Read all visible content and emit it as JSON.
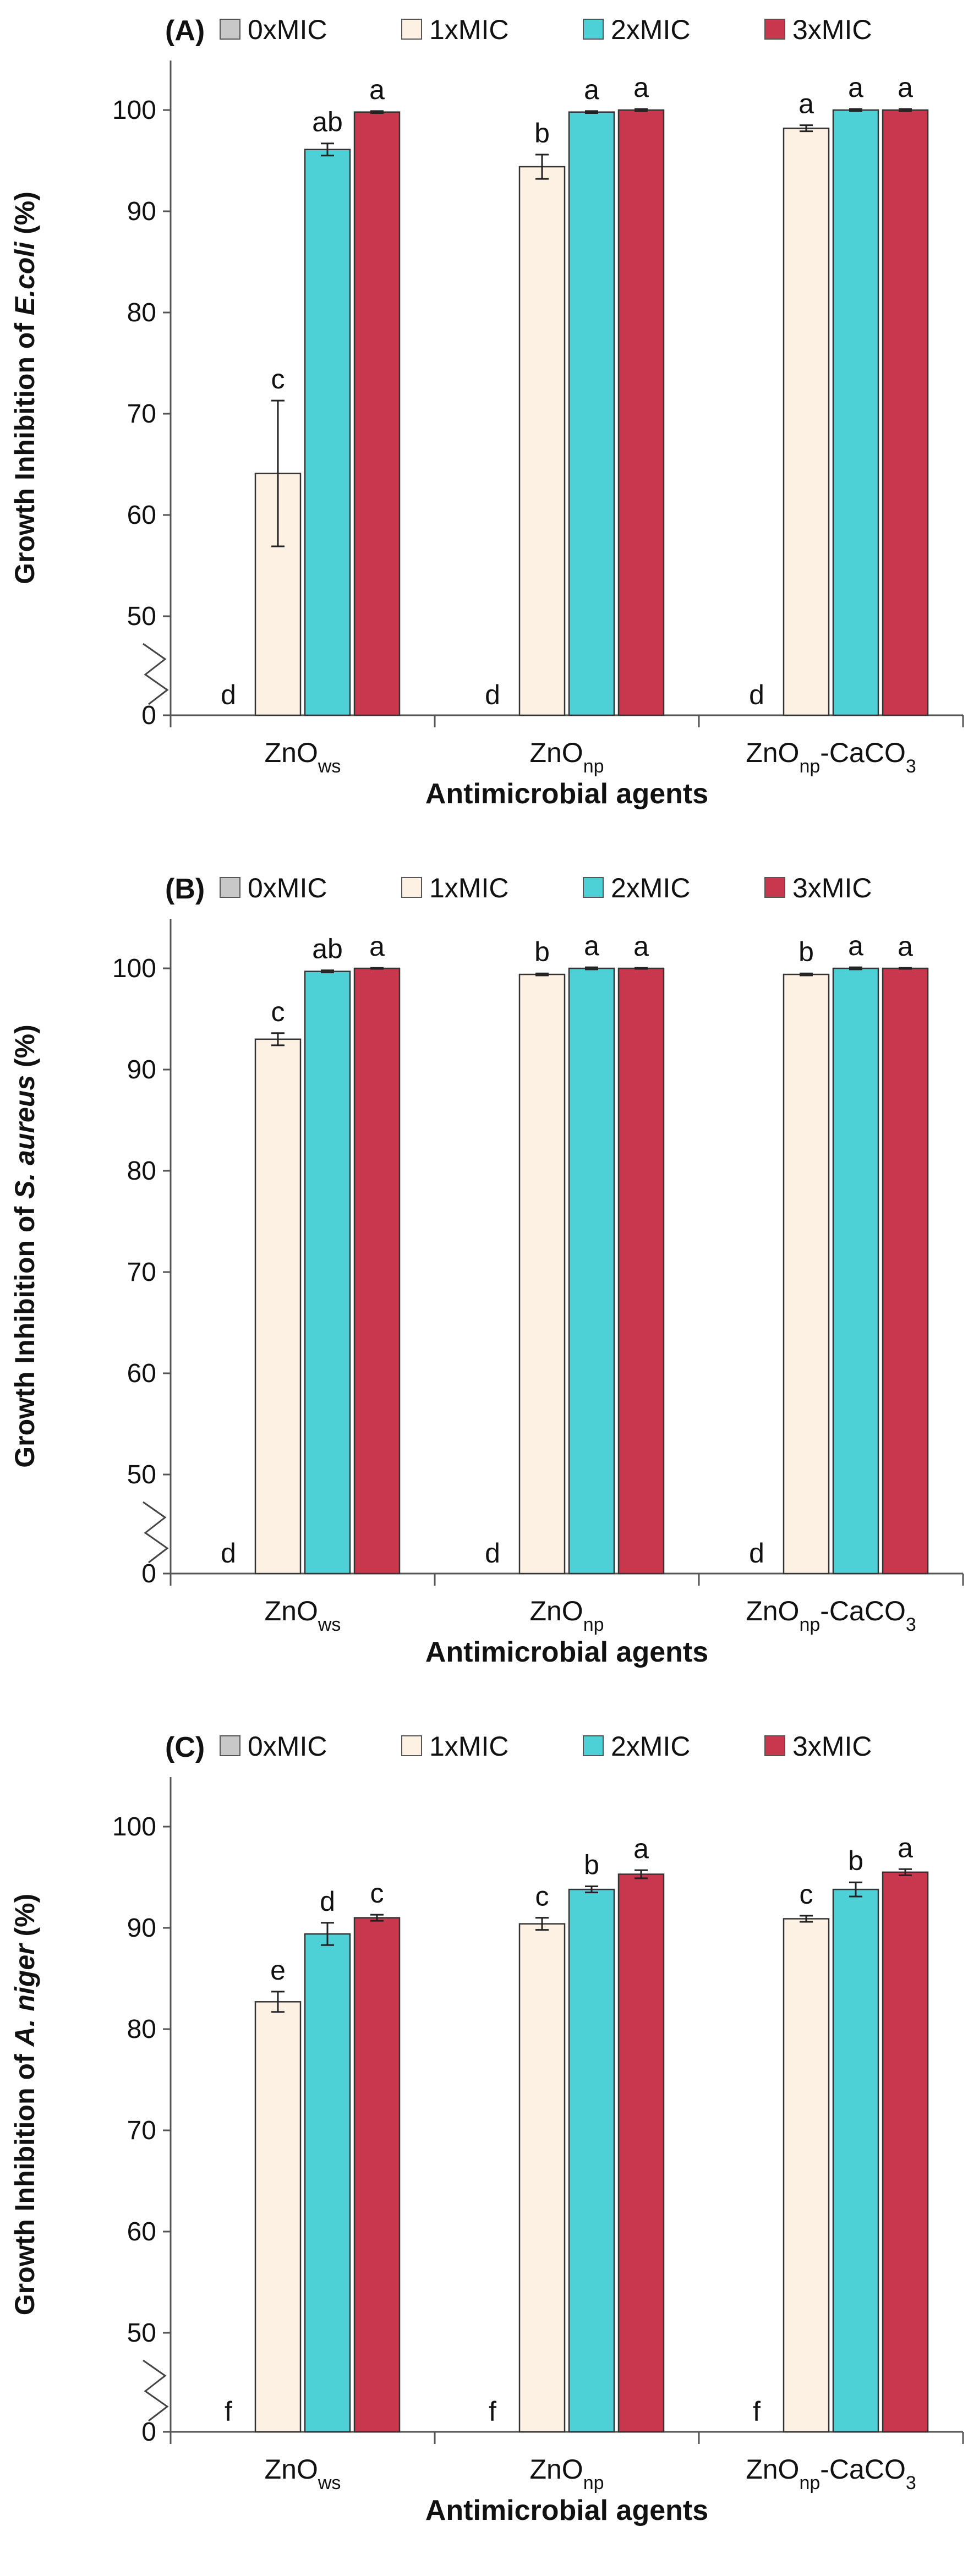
{
  "chart_data": [
    {
      "type": "bar",
      "panel": "(A)",
      "title": "",
      "ylabel_prefix": "Growth Inhibition of ",
      "organism": "E.coli",
      "ylabel_suffix": " (%)",
      "xlabel": "Antimicrobial agents",
      "categories": [
        {
          "base": "ZnO",
          "sub": "ws",
          "tail": "",
          "tail_sub": ""
        },
        {
          "base": "ZnO",
          "sub": "np",
          "tail": "",
          "tail_sub": ""
        },
        {
          "base": "ZnO",
          "sub": "np",
          "tail": "-CaCO",
          "tail_sub": "3"
        }
      ],
      "series": [
        {
          "name": "0xMIC",
          "color": "#c8c8c8",
          "values": [
            0,
            0,
            0
          ],
          "errors": [
            0,
            0,
            0
          ],
          "labels": [
            "d",
            "d",
            "d"
          ]
        },
        {
          "name": "1xMIC",
          "color": "#fdf1e4",
          "values": [
            64.1,
            94.4,
            98.2
          ],
          "errors": [
            7.2,
            1.2,
            0.3
          ],
          "labels": [
            "c",
            "b",
            "a"
          ]
        },
        {
          "name": "2xMIC",
          "color": "#4dd0d6",
          "values": [
            96.1,
            99.8,
            100
          ],
          "errors": [
            0.6,
            0.1,
            0.1
          ],
          "labels": [
            "ab",
            "a",
            "a"
          ]
        },
        {
          "name": "3xMIC",
          "color": "#c8374d",
          "values": [
            99.8,
            100,
            100
          ],
          "errors": [
            0.1,
            0.1,
            0.1
          ],
          "labels": [
            "a",
            "a",
            "a"
          ]
        }
      ],
      "ylim": [
        0,
        100
      ],
      "axis_break": [
        0,
        40
      ],
      "yticks": [
        0,
        50,
        60,
        70,
        80,
        90,
        100
      ],
      "legend_position": "top"
    },
    {
      "type": "bar",
      "panel": "(B)",
      "title": "",
      "ylabel_prefix": "Growth Inhibition of ",
      "organism": "S. aureus",
      "ylabel_suffix": " (%)",
      "xlabel": "Antimicrobial agents",
      "categories": [
        {
          "base": "ZnO",
          "sub": "ws",
          "tail": "",
          "tail_sub": ""
        },
        {
          "base": "ZnO",
          "sub": "np",
          "tail": "",
          "tail_sub": ""
        },
        {
          "base": "ZnO",
          "sub": "np",
          "tail": "-CaCO",
          "tail_sub": "3"
        }
      ],
      "series": [
        {
          "name": "0xMIC",
          "color": "#c8c8c8",
          "values": [
            0,
            0,
            0
          ],
          "errors": [
            0,
            0,
            0
          ],
          "labels": [
            "d",
            "d",
            "d"
          ]
        },
        {
          "name": "1xMIC",
          "color": "#fdf1e4",
          "values": [
            93.0,
            99.4,
            99.4
          ],
          "errors": [
            0.6,
            0.1,
            0.1
          ],
          "labels": [
            "c",
            "b",
            "b"
          ]
        },
        {
          "name": "2xMIC",
          "color": "#4dd0d6",
          "values": [
            99.7,
            100,
            100
          ],
          "errors": [
            0.1,
            0.1,
            0.1
          ],
          "labels": [
            "ab",
            "a",
            "a"
          ]
        },
        {
          "name": "3xMIC",
          "color": "#c8374d",
          "values": [
            100,
            100,
            100
          ],
          "errors": [
            0.05,
            0.05,
            0.05
          ],
          "labels": [
            "a",
            "a",
            "a"
          ]
        }
      ],
      "ylim": [
        0,
        100
      ],
      "axis_break": [
        0,
        40
      ],
      "yticks": [
        0,
        50,
        60,
        70,
        80,
        90,
        100
      ],
      "legend_position": "top"
    },
    {
      "type": "bar",
      "panel": "(C)",
      "title": "",
      "ylabel_prefix": "Growth Inhibition of ",
      "organism": "A. niger",
      "ylabel_suffix": " (%)",
      "xlabel": "Antimicrobial agents",
      "categories": [
        {
          "base": "ZnO",
          "sub": "ws",
          "tail": "",
          "tail_sub": ""
        },
        {
          "base": "ZnO",
          "sub": "np",
          "tail": "",
          "tail_sub": ""
        },
        {
          "base": "ZnO",
          "sub": "np",
          "tail": "-CaCO",
          "tail_sub": "3"
        }
      ],
      "series": [
        {
          "name": "0xMIC",
          "color": "#c8c8c8",
          "values": [
            0,
            0,
            0
          ],
          "errors": [
            0,
            0,
            0
          ],
          "labels": [
            "f",
            "f",
            "f"
          ]
        },
        {
          "name": "1xMIC",
          "color": "#fdf1e4",
          "values": [
            82.7,
            90.4,
            90.9
          ],
          "errors": [
            1.0,
            0.6,
            0.3
          ],
          "labels": [
            "e",
            "c",
            "c"
          ]
        },
        {
          "name": "2xMIC",
          "color": "#4dd0d6",
          "values": [
            89.4,
            93.8,
            93.8
          ],
          "errors": [
            1.1,
            0.3,
            0.7
          ],
          "labels": [
            "d",
            "b",
            "b"
          ]
        },
        {
          "name": "3xMIC",
          "color": "#c8374d",
          "values": [
            91.0,
            95.3,
            95.5
          ],
          "errors": [
            0.3,
            0.4,
            0.3
          ],
          "labels": [
            "c",
            "a",
            "a"
          ]
        }
      ],
      "ylim": [
        0,
        100
      ],
      "axis_break": [
        0,
        40
      ],
      "yticks": [
        0,
        50,
        60,
        70,
        80,
        90,
        100
      ],
      "legend_position": "top"
    }
  ]
}
